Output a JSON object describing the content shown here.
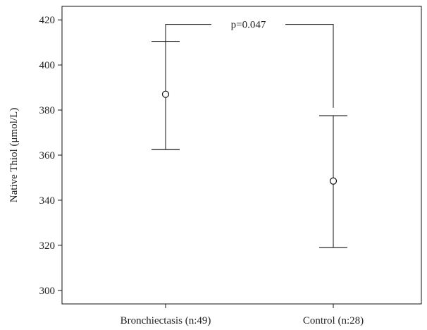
{
  "chart_data": {
    "type": "errorbar",
    "title": "",
    "xlabel": "",
    "ylabel": "Native Thiol (μmol/L)",
    "ylim": [
      294,
      426
    ],
    "yticks": [
      300,
      320,
      340,
      360,
      380,
      400,
      420
    ],
    "categories": [
      "Bronchiectasis (n:49)",
      "Control (n:28)"
    ],
    "series": [
      {
        "mean": [
          387,
          348.5
        ],
        "lower": [
          362.5,
          319
        ],
        "upper": [
          410.5,
          377.5
        ]
      }
    ],
    "annotation": {
      "text": "p=0.047",
      "bracket_y": 418,
      "left_end": 410.5,
      "right_end": 381
    },
    "grid": false,
    "legend": "none"
  }
}
